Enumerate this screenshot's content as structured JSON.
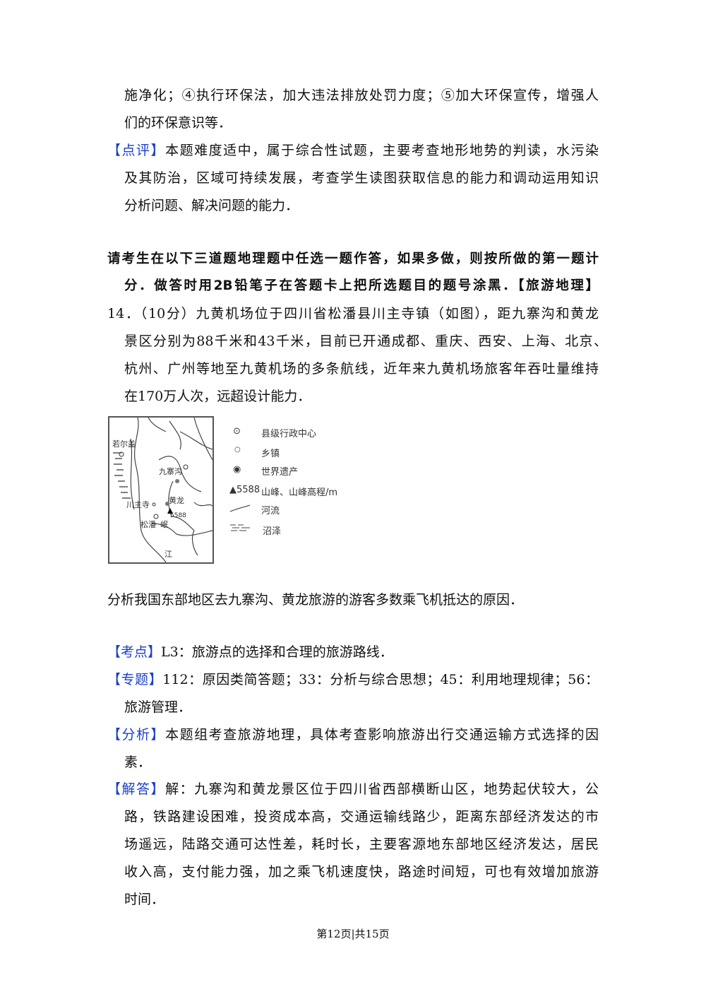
{
  "prev_answer": {
    "lines": [
      "施净化；④执行环保法，加大违法排放处罚力度；⑤加大环保宣传，增强人",
      "们的环保意识等．"
    ]
  },
  "comment": {
    "label": "【点评】",
    "lines": [
      "本题难度适中，属于综合性试题，主要考查地形地势的判读，水污染",
      "及其防治，区域可持续发展，考查学生读图获取信息的能力和调动运用知识",
      "分析问题、解决问题的能力．"
    ]
  },
  "instruction": {
    "lines": [
      "请考生在以下三道题地理题中任选一题作答，如果多做，则按所做的第一题计",
      "分．做答时用2B铅笔子在答题卡上把所选题目的题号涂黑．【旅游地理】"
    ]
  },
  "question": {
    "lines": [
      "14．（10分）九黄机场位于四川省松潘县川主寺镇（如图），距九寨沟和黄龙",
      "景区分别为88千米和43千米，目前已开通成都、重庆、西安、上海、北京、",
      "杭州、广州等地至九黄机场的多条航线，近年来九黄机场旅客年吞吐量维持",
      "在170万人次，远超设计能力．"
    ],
    "prompt": "分析我国东部地区去九寨沟、黄龙旅游的游客多数乘飞机抵达的原因．"
  },
  "map": {
    "places": {
      "zoige": "若尔盖",
      "jiuzhaigou": "九寨沟",
      "chuanzhusi": "川主寺",
      "huanglong": "黄龙",
      "songpan": "松潘",
      "min": "岷",
      "jiang": "江",
      "peak": "5588"
    },
    "legend": [
      {
        "icon": "county-center-icon",
        "label": "县级行政中心"
      },
      {
        "icon": "town-icon",
        "label": "乡镇"
      },
      {
        "icon": "world-heritage-icon",
        "label": "世界遗产"
      },
      {
        "icon": "peak-icon",
        "symbol": "▲5588",
        "label": "山峰、山峰高程/m"
      },
      {
        "icon": "river-icon",
        "label": "河流"
      },
      {
        "icon": "swamp-icon",
        "label": "沼泽"
      }
    ]
  },
  "answer": {
    "kaodian": {
      "label": "【考点】",
      "lines": [
        "L3：旅游点的选择和合理的旅游路线．"
      ]
    },
    "zhuanti": {
      "label": "【专题】",
      "lines": [
        "112：原因类简答题；33：分析与综合思想；45：利用地理规律；56：",
        "旅游管理．"
      ]
    },
    "fenxi": {
      "label": "【分析】",
      "lines": [
        "本题组考查旅游地理，具体考查影响旅游出行交通运输方式选择的因",
        "素．"
      ]
    },
    "jieda": {
      "label": "【解答】",
      "lines": [
        "解：九寨沟和黄龙景区位于四川省西部横断山区，地势起伏较大，公",
        "路，铁路建设困难，投资成本高，交通运输线路少，距离东部经济发达的市",
        "场遥远，陆路交通可达性差，耗时长，主要客源地东部地区经济发达，居民",
        "收入高，支付能力强，加之乘飞机速度快，路途时间短，可也有效增加旅游",
        "时间．"
      ]
    }
  },
  "footer": "第12页|共15页",
  "colors": {
    "tag": "#1a3fc8"
  }
}
